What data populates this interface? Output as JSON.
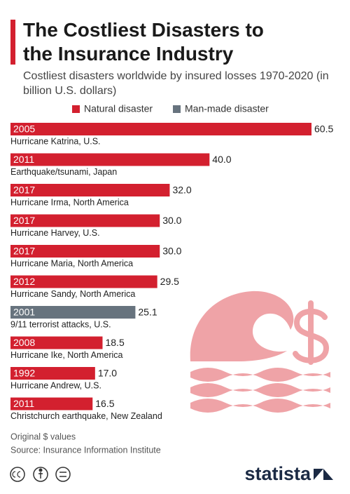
{
  "chart_data": {
    "type": "bar",
    "title": "The Costliest Disasters to the Insurance Industry",
    "subtitle": "Costliest disasters worldwide by insured losses 1970-2020 (in billion U.S. dollars)",
    "categories": [
      "Hurricane Katrina, U.S.",
      "Earthquake/tsunami, Japan",
      "Hurricane Irma, North America",
      "Hurricane Harvey, U.S.",
      "Hurricane Maria, North America",
      "Hurricane Sandy, North America",
      "9/11 terrorist attacks, U.S.",
      "Hurricane Ike, North America",
      "Hurricane Andrew, U.S.",
      "Christchurch earthquake, New Zealand"
    ],
    "years": [
      "2005",
      "2011",
      "2017",
      "2017",
      "2017",
      "2012",
      "2001",
      "2008",
      "1992",
      "2011"
    ],
    "series": [
      {
        "name": "Natural disaster",
        "color": "#d3202f",
        "values": [
          60.5,
          40.0,
          32.0,
          30.0,
          30.0,
          29.5,
          null,
          18.5,
          17.0,
          16.5
        ],
        "value_labels": [
          "60.5",
          "40.0",
          "32.0",
          "30.0",
          "30.0",
          "29.5",
          null,
          "18.5",
          "17.0",
          "16.5"
        ]
      },
      {
        "name": "Man-made disaster",
        "color": "#67737e",
        "values": [
          null,
          null,
          null,
          null,
          null,
          null,
          25.1,
          null,
          null,
          null
        ],
        "value_labels": [
          null,
          null,
          null,
          null,
          null,
          null,
          "25.1",
          null,
          null,
          null
        ]
      }
    ],
    "note": "Original $ values",
    "source": "Source: Insurance Information Institute",
    "brand": "statista"
  }
}
